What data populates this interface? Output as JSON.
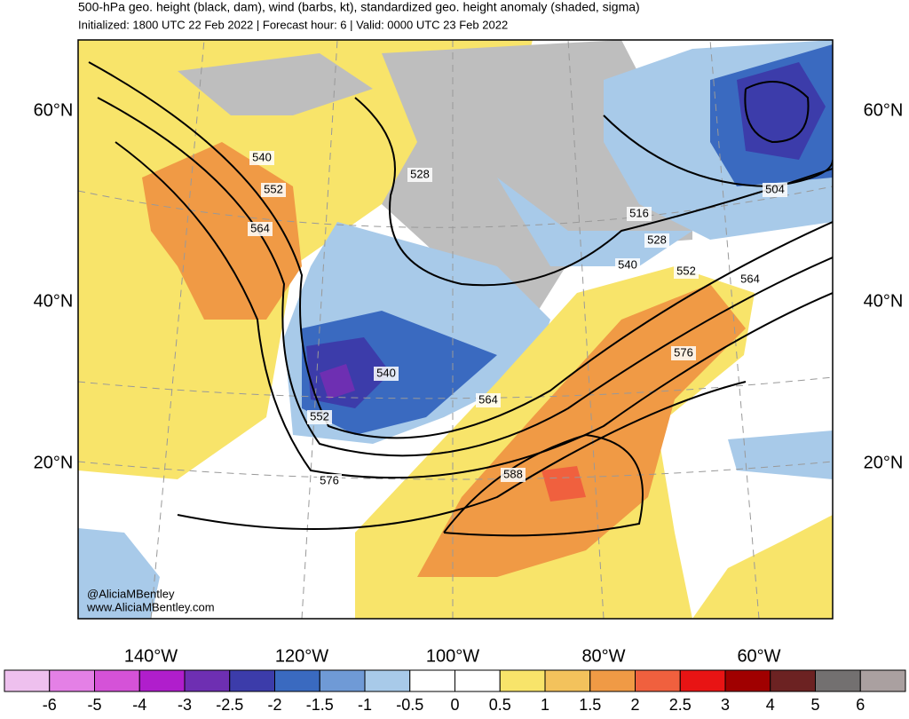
{
  "header": {
    "title": "500-hPa geo. height (black, dam), wind (barbs, kt), standardized geo. height anomaly (shaded, sigma)",
    "subtitle": "Initialized: 1800 UTC 22 Feb 2022 | Forecast hour: 6 | Valid: 0000 UTC 23 Feb 2022"
  },
  "map": {
    "lat_labels": [
      "60°N",
      "40°N",
      "20°N"
    ],
    "lon_labels": [
      "140°W",
      "120°W",
      "100°W",
      "80°W",
      "60°W"
    ],
    "contour_labels": [
      "540",
      "552",
      "564",
      "528",
      "516",
      "504",
      "528",
      "540",
      "552",
      "564",
      "576",
      "540",
      "552",
      "564",
      "576",
      "588"
    ],
    "credits": [
      "@AliciaMBentley",
      "www.AliciaMBentley.com"
    ]
  },
  "colorbar": {
    "labels": [
      "-6",
      "-5",
      "-4",
      "-3",
      "-2.5",
      "-2",
      "-1.5",
      "-1",
      "-0.5",
      "0",
      "0.5",
      "1",
      "1.5",
      "2",
      "2.5",
      "3",
      "4",
      "5",
      "6"
    ],
    "colors": [
      "#eec0ee",
      "#e480e6",
      "#d552d8",
      "#b01ecc",
      "#6e2fb2",
      "#3c3caa",
      "#3a6ac0",
      "#6f9ad6",
      "#a8cae9",
      "#ffffff",
      "#ffffff",
      "#f8e46a",
      "#f3c25c",
      "#f09a45",
      "#f0603e",
      "#e81414",
      "#a00000",
      "#6c2222",
      "#737070",
      "#aaa0a0"
    ]
  }
}
